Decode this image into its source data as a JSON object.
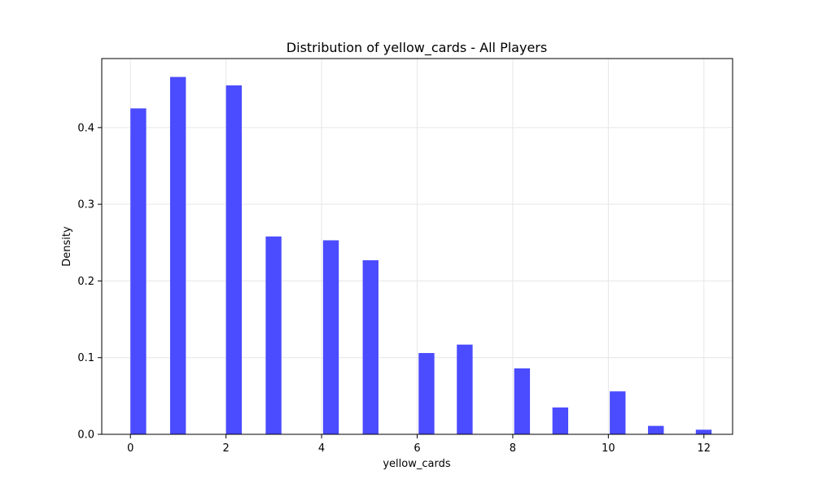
{
  "chart_data": {
    "type": "bar",
    "title": "Distribution of yellow_cards - All Players",
    "xlabel": "yellow_cards",
    "ylabel": "Density",
    "xlim": [
      -0.6,
      12.6
    ],
    "ylim": [
      0,
      0.49
    ],
    "xticks": [
      0,
      2,
      4,
      6,
      8,
      10,
      12
    ],
    "yticks": [
      0.0,
      0.1,
      0.2,
      0.3,
      0.4
    ],
    "grid": true,
    "bar_color": "#4b4bff",
    "bars": [
      {
        "x0": 0.0,
        "x1": 0.33,
        "value": 0.425
      },
      {
        "x0": 0.83,
        "x1": 1.16,
        "value": 0.466
      },
      {
        "x0": 2.0,
        "x1": 2.33,
        "value": 0.455
      },
      {
        "x0": 2.83,
        "x1": 3.16,
        "value": 0.258
      },
      {
        "x0": 4.03,
        "x1": 4.36,
        "value": 0.253
      },
      {
        "x0": 4.86,
        "x1": 5.19,
        "value": 0.227
      },
      {
        "x0": 6.03,
        "x1": 6.36,
        "value": 0.106
      },
      {
        "x0": 6.83,
        "x1": 7.16,
        "value": 0.117
      },
      {
        "x0": 8.03,
        "x1": 8.36,
        "value": 0.086
      },
      {
        "x0": 8.83,
        "x1": 9.16,
        "value": 0.035
      },
      {
        "x0": 10.03,
        "x1": 10.36,
        "value": 0.056
      },
      {
        "x0": 10.83,
        "x1": 11.16,
        "value": 0.011
      },
      {
        "x0": 11.83,
        "x1": 12.16,
        "value": 0.006
      }
    ]
  }
}
